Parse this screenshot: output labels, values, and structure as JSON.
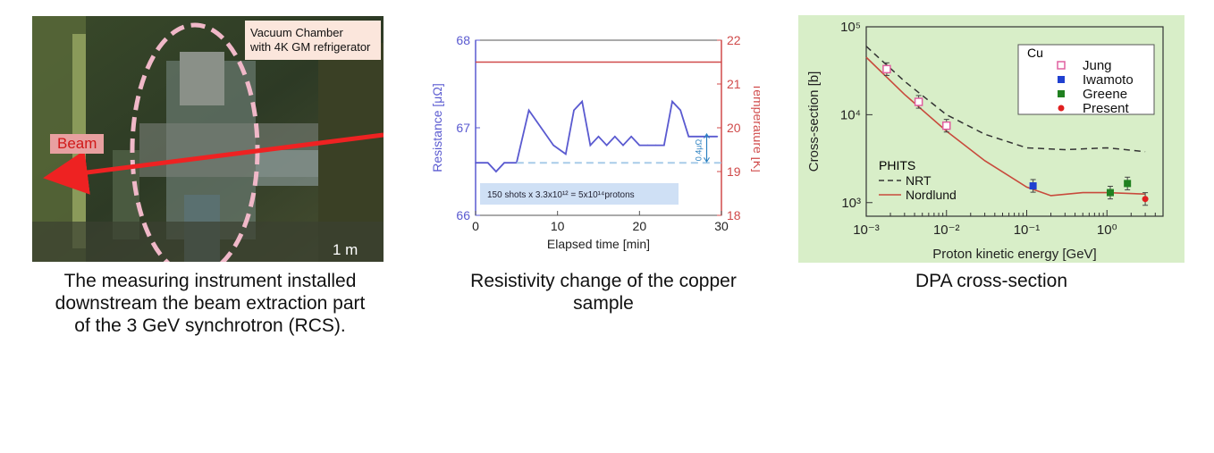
{
  "photo": {
    "callout_line1": "Vacuum Chamber",
    "callout_line2": "with 4K GM refrigerator",
    "beam_label": "Beam",
    "scale_label": "1 m",
    "caption_lines": [
      "The measuring instrument installed",
      "downstream the beam extraction part",
      "of the 3 GeV synchrotron (RCS)."
    ]
  },
  "resistivity": {
    "caption_lines": [
      "Resistivity change of the copper",
      "sample"
    ],
    "annotation_delta": "0.4μΩ",
    "annotation_box": "150 shots x 3.3x10¹² = 5x10¹⁴protons",
    "colors": {
      "resistance": "#5a5ad0",
      "temperature": "#d04a4a",
      "box": "#cfe0f5"
    }
  },
  "dpa": {
    "caption_lines": [
      "DPA cross-section"
    ],
    "legend_title": "Cu",
    "phits_title": "PHITS",
    "colors": {
      "bg": "#d8eec8",
      "jung": "#e060a0",
      "iwamoto": "#2040d0",
      "greene": "#208020",
      "present": "#e02020",
      "nordlund": "#c84a3c",
      "nrt": "#333333"
    }
  },
  "chart_data": [
    {
      "type": "line",
      "xlabel": "Elapsed time [min]",
      "ylabel": "Resistance [μΩ]",
      "ylabel_right": "Temperature [K]",
      "xlim": [
        0,
        30
      ],
      "ylim": [
        66,
        68
      ],
      "ylim_right": [
        18,
        22
      ],
      "x_ticks": [
        "0",
        "10",
        "20",
        "30"
      ],
      "y_ticks": [
        "66",
        "67",
        "68"
      ],
      "y_ticks_right": [
        "18",
        "19",
        "20",
        "21",
        "22"
      ],
      "grid": false,
      "series": [
        {
          "axis": "left",
          "x": [
            0,
            1.5,
            2.5,
            3.5,
            5,
            6.5,
            8,
            9.5,
            11,
            12,
            13,
            14,
            15,
            16,
            17,
            18,
            19,
            20,
            21,
            22,
            23,
            24,
            25,
            26,
            27,
            28,
            29.5
          ],
          "values": [
            66.6,
            66.6,
            66.5,
            66.6,
            66.6,
            67.2,
            67.0,
            66.8,
            66.7,
            67.2,
            67.3,
            66.8,
            66.9,
            66.8,
            66.9,
            66.8,
            66.9,
            66.8,
            66.8,
            66.8,
            66.8,
            67.3,
            67.2,
            66.9,
            66.9,
            66.9,
            66.9
          ]
        },
        {
          "axis": "right",
          "x": [
            0,
            30
          ],
          "values": [
            21.5,
            21.5
          ]
        },
        {
          "axis": "left",
          "x": [
            5,
            30
          ],
          "values": [
            66.6,
            66.6
          ]
        }
      ]
    },
    {
      "type": "scatter",
      "xlabel": "Proton kinetic energy [GeV]",
      "ylabel": "Cross-section [b]",
      "xscale": "log",
      "yscale": "log",
      "xlim": [
        0.001,
        5
      ],
      "ylim": [
        700,
        100000
      ],
      "x_ticks": [
        "10⁻³",
        "10⁻²",
        "10⁻¹",
        "10⁰"
      ],
      "y_ticks": [
        "10³",
        "10⁴",
        "10⁵"
      ],
      "legend_placement": "top-right",
      "series": [
        {
          "name": "Jung",
          "x": [
            0.0018,
            0.0045,
            0.01
          ],
          "values": [
            33000,
            14000,
            7500
          ]
        },
        {
          "name": "Iwamoto",
          "x": [
            0.12
          ],
          "values": [
            1550
          ]
        },
        {
          "name": "Greene",
          "x": [
            1.1,
            1.8
          ],
          "values": [
            1300,
            1650
          ]
        },
        {
          "name": "Present",
          "x": [
            3.0
          ],
          "values": [
            1100
          ]
        },
        {
          "name": "NRT",
          "x": [
            0.001,
            0.003,
            0.01,
            0.03,
            0.1,
            0.3,
            1,
            3
          ],
          "values": [
            60000,
            24000,
            10000,
            6000,
            4200,
            4000,
            4200,
            3800
          ]
        },
        {
          "name": "Nordlund",
          "x": [
            0.001,
            0.003,
            0.01,
            0.03,
            0.1,
            0.2,
            0.5,
            1,
            3
          ],
          "values": [
            45000,
            17000,
            6500,
            3000,
            1500,
            1200,
            1300,
            1300,
            1250
          ]
        }
      ]
    }
  ]
}
